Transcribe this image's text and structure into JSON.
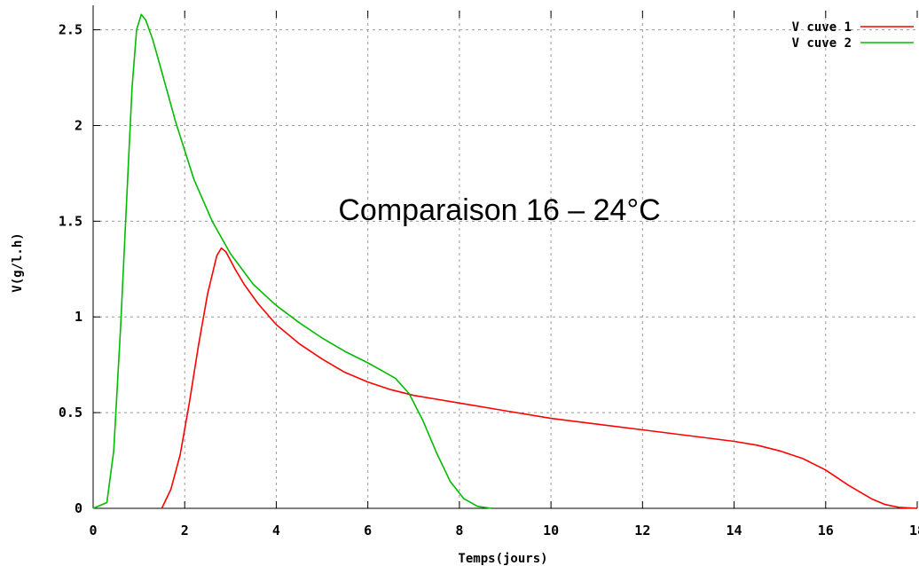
{
  "chart_data": {
    "type": "line",
    "title": "",
    "annotation": "Comparaison 16 – 24°C",
    "xlabel": "Temps(jours)",
    "ylabel": "V(g/l.h)",
    "xlim": [
      0,
      18
    ],
    "ylim": [
      0,
      2.6
    ],
    "xticks": [
      0,
      2,
      4,
      6,
      8,
      10,
      12,
      14,
      16,
      18
    ],
    "xtick_labels": [
      "0",
      "2",
      "4",
      "6",
      "8",
      "10",
      "12",
      "14",
      "16",
      "18"
    ],
    "yticks": [
      0,
      0.5,
      1,
      1.5,
      2,
      2.5
    ],
    "ytick_labels": [
      "0",
      "0.5",
      "1",
      "1.5",
      "2",
      "2.5"
    ],
    "grid": true,
    "legend_position": "top-right",
    "series": [
      {
        "name": "V cuve 1",
        "color": "#ff0000",
        "x": [
          1.5,
          1.7,
          1.9,
          2.1,
          2.3,
          2.5,
          2.7,
          2.8,
          2.9,
          3.1,
          3.3,
          3.6,
          4.0,
          4.5,
          5.0,
          5.5,
          6.0,
          6.5,
          7.0,
          7.5,
          8.0,
          9.0,
          10.0,
          11.0,
          12.0,
          13.0,
          14.0,
          14.5,
          15.0,
          15.5,
          16.0,
          16.5,
          17.0,
          17.3,
          17.6,
          18.0
        ],
        "y": [
          0.0,
          0.1,
          0.28,
          0.55,
          0.85,
          1.12,
          1.32,
          1.36,
          1.34,
          1.25,
          1.17,
          1.07,
          0.96,
          0.86,
          0.78,
          0.71,
          0.66,
          0.62,
          0.59,
          0.57,
          0.55,
          0.51,
          0.47,
          0.44,
          0.41,
          0.38,
          0.35,
          0.33,
          0.3,
          0.26,
          0.2,
          0.12,
          0.05,
          0.02,
          0.005,
          0.0
        ]
      },
      {
        "name": "V cuve 2",
        "color": "#00bb00",
        "x": [
          0.0,
          0.3,
          0.45,
          0.6,
          0.75,
          0.85,
          0.95,
          1.05,
          1.15,
          1.3,
          1.5,
          1.8,
          2.2,
          2.6,
          3.0,
          3.5,
          4.0,
          4.5,
          5.0,
          5.5,
          6.0,
          6.3,
          6.6,
          6.9,
          7.2,
          7.5,
          7.8,
          8.1,
          8.4,
          8.7
        ],
        "y": [
          0.0,
          0.03,
          0.3,
          0.95,
          1.7,
          2.2,
          2.5,
          2.58,
          2.55,
          2.45,
          2.28,
          2.02,
          1.72,
          1.5,
          1.33,
          1.17,
          1.06,
          0.97,
          0.89,
          0.82,
          0.76,
          0.72,
          0.68,
          0.6,
          0.46,
          0.29,
          0.14,
          0.05,
          0.01,
          0.0
        ]
      }
    ]
  }
}
